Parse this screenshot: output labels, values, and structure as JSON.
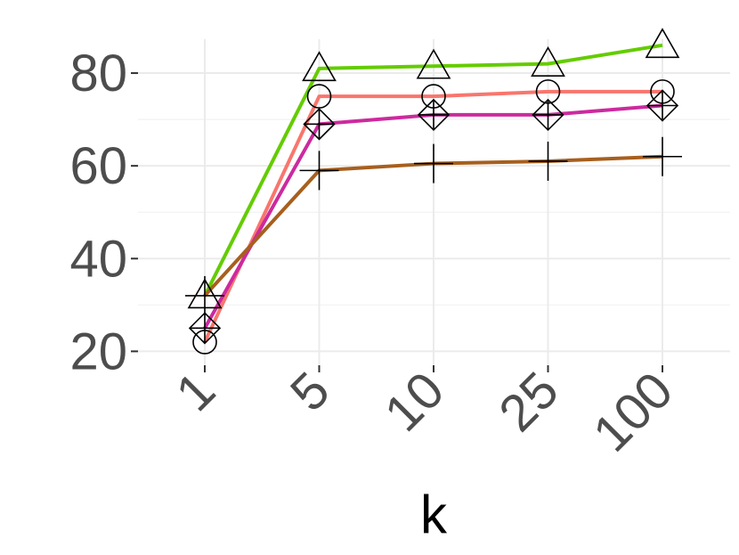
{
  "chart_data": {
    "type": "line",
    "title": "",
    "xlabel": "k",
    "ylabel": "",
    "categories": [
      "1",
      "5",
      "10",
      "25",
      "100"
    ],
    "ylim": [
      17,
      90
    ],
    "yticks": [
      20,
      40,
      60,
      80
    ],
    "grid": true,
    "legend": "none",
    "series": [
      {
        "color": "#64cc00",
        "marker": "triangle",
        "values": [
          32,
          81,
          81.5,
          82,
          86
        ]
      },
      {
        "color": "#f8766d",
        "marker": "circle",
        "values": [
          22,
          75,
          75,
          76,
          76
        ]
      },
      {
        "color": "#cc2a9e",
        "marker": "diamond-plus",
        "values": [
          25,
          69,
          71,
          71,
          73
        ]
      },
      {
        "color": "#a75f1e",
        "marker": "plus",
        "values": [
          32,
          59,
          60.5,
          61,
          62
        ]
      }
    ]
  }
}
